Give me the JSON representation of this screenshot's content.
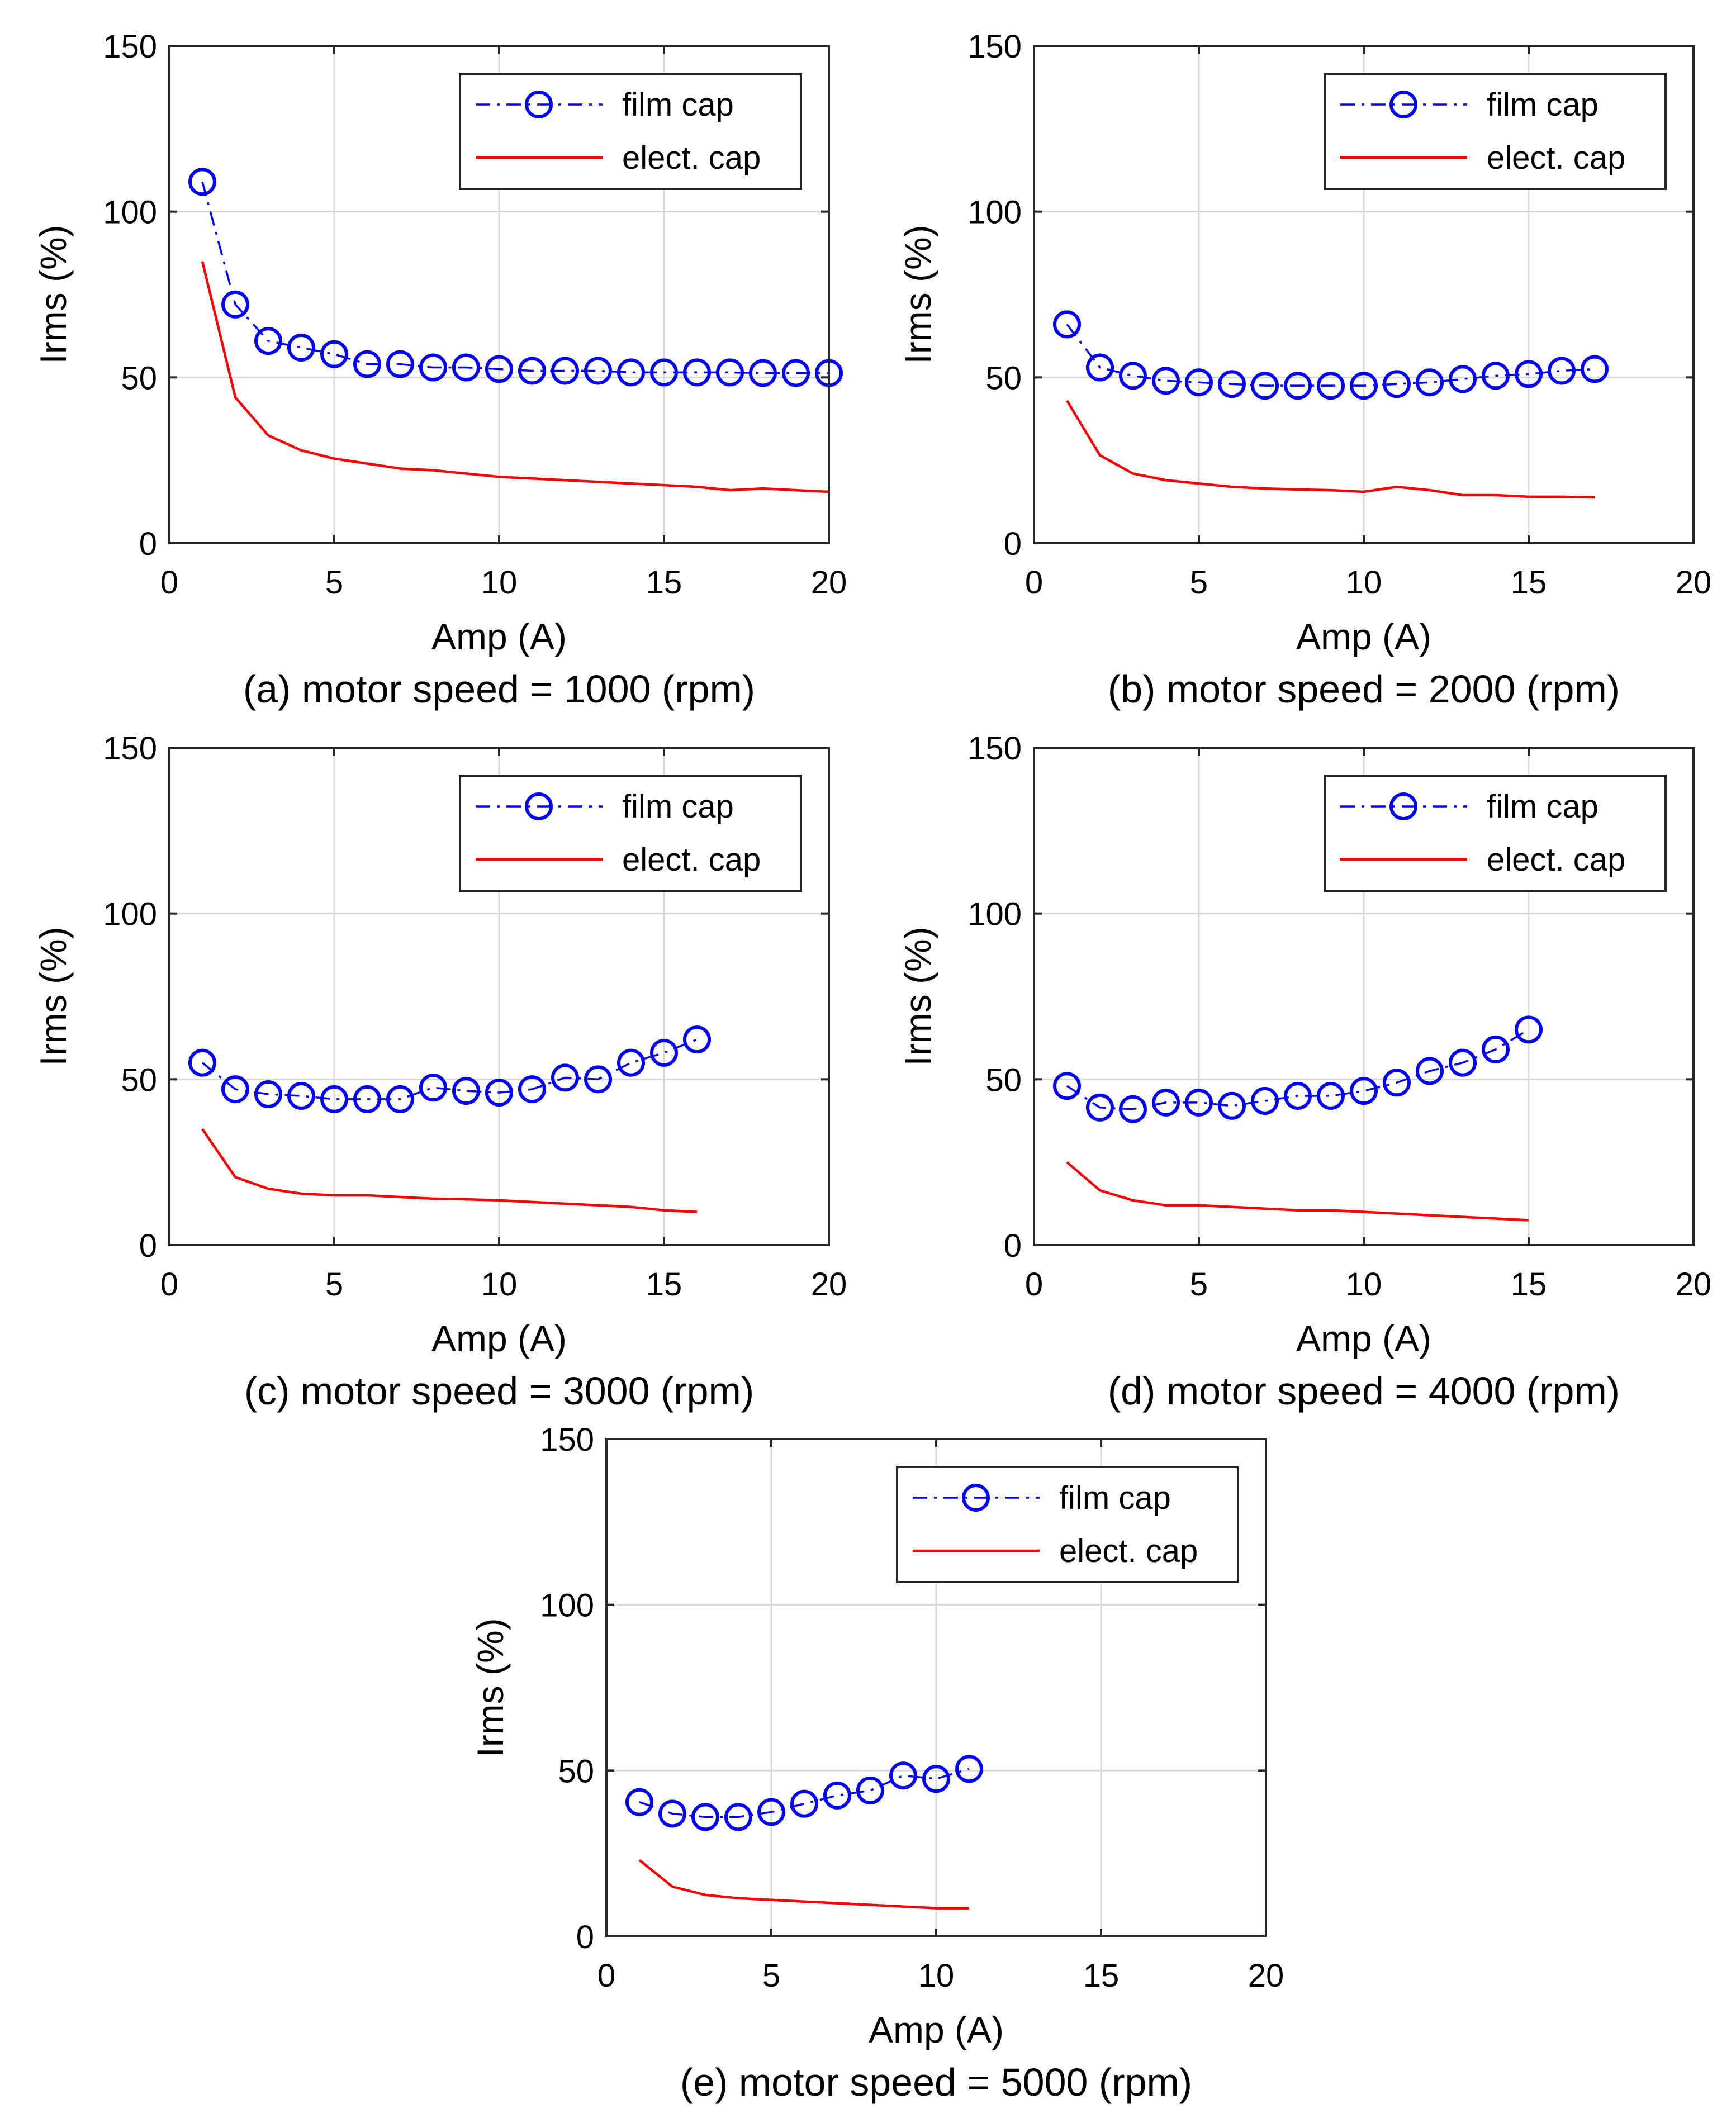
{
  "chart_data": [
    {
      "type": "line",
      "caption": "(a) motor speed = 1000 (rpm)",
      "xlabel": "Amp (A)",
      "ylabel": "Irms (%)",
      "xlim": [
        0,
        20
      ],
      "ylim": [
        0,
        150
      ],
      "xticks": [
        "0",
        "5",
        "10",
        "15",
        "20"
      ],
      "yticks": [
        "0",
        "50",
        "100",
        "150"
      ],
      "grid": true,
      "legend_position": "top-right",
      "series": [
        {
          "name": "film cap",
          "style": "dash-dot-circle",
          "color": "#0000ff",
          "x": [
            1,
            2,
            3,
            4,
            5,
            6,
            7,
            8,
            9,
            10,
            11,
            12,
            13,
            14,
            15,
            16,
            17,
            18,
            19,
            20
          ],
          "y": [
            109,
            72,
            61,
            59,
            57,
            54,
            54,
            53,
            53,
            52.5,
            52,
            52,
            52,
            51.5,
            51.5,
            51.5,
            51.5,
            51.3,
            51.3,
            51.3
          ]
        },
        {
          "name": "elect. cap",
          "style": "solid",
          "color": "#ff0000",
          "x": [
            1,
            2,
            3,
            4,
            5,
            6,
            7,
            8,
            9,
            10,
            11,
            12,
            13,
            14,
            15,
            16,
            17,
            18,
            19,
            20
          ],
          "y": [
            85,
            44,
            32.5,
            28,
            25.5,
            24,
            22.5,
            22,
            21,
            20,
            19.5,
            19,
            18.5,
            18,
            17.5,
            17,
            16,
            16.5,
            16,
            15.5
          ]
        }
      ]
    },
    {
      "type": "line",
      "caption": "(b) motor speed = 2000 (rpm)",
      "xlabel": "Amp (A)",
      "ylabel": "Irms (%)",
      "xlim": [
        0,
        20
      ],
      "ylim": [
        0,
        150
      ],
      "xticks": [
        "0",
        "5",
        "10",
        "15",
        "20"
      ],
      "yticks": [
        "0",
        "50",
        "100",
        "150"
      ],
      "grid": true,
      "legend_position": "top-right",
      "series": [
        {
          "name": "film cap",
          "style": "dash-dot-circle",
          "color": "#0000ff",
          "x": [
            1,
            2,
            3,
            4,
            5,
            6,
            7,
            8,
            9,
            10,
            11,
            12,
            13,
            14,
            15,
            16,
            17
          ],
          "y": [
            66,
            53,
            50.5,
            49,
            48.5,
            48,
            47.5,
            47.5,
            47.5,
            47.5,
            48,
            48.5,
            49.5,
            50.5,
            51,
            52,
            52.5
          ]
        },
        {
          "name": "elect. cap",
          "style": "solid",
          "color": "#ff0000",
          "x": [
            1,
            2,
            3,
            4,
            5,
            6,
            7,
            8,
            9,
            10,
            11,
            12,
            13,
            14,
            15,
            16,
            17
          ],
          "y": [
            43,
            26.5,
            21,
            19,
            18,
            17,
            16.5,
            16.2,
            16,
            15.5,
            17,
            16,
            14.5,
            14.5,
            14,
            14,
            13.8
          ]
        }
      ]
    },
    {
      "type": "line",
      "caption": "(c) motor speed = 3000 (rpm)",
      "xlabel": "Amp (A)",
      "ylabel": "Irms (%)",
      "xlim": [
        0,
        20
      ],
      "ylim": [
        0,
        150
      ],
      "xticks": [
        "0",
        "5",
        "10",
        "15",
        "20"
      ],
      "yticks": [
        "0",
        "50",
        "100",
        "150"
      ],
      "grid": true,
      "legend_position": "top-right",
      "series": [
        {
          "name": "film cap",
          "style": "dash-dot-circle",
          "color": "#0000ff",
          "x": [
            1,
            2,
            3,
            4,
            5,
            6,
            7,
            8,
            9,
            10,
            11,
            12,
            13,
            14,
            15,
            16
          ],
          "y": [
            55,
            47,
            45.5,
            45,
            44,
            44,
            44,
            47.5,
            46.5,
            46,
            47,
            50.5,
            50,
            55,
            58,
            62
          ]
        },
        {
          "name": "elect. cap",
          "style": "solid",
          "color": "#ff0000",
          "x": [
            1,
            2,
            3,
            4,
            5,
            6,
            7,
            8,
            9,
            10,
            11,
            12,
            13,
            14,
            15,
            16
          ],
          "y": [
            35,
            20.5,
            17,
            15.5,
            15,
            15,
            14.5,
            14,
            13.8,
            13.5,
            13,
            12.5,
            12,
            11.5,
            10.5,
            10
          ]
        }
      ]
    },
    {
      "type": "line",
      "caption": "(d) motor speed = 4000 (rpm)",
      "xlabel": "Amp (A)",
      "ylabel": "Irms (%)",
      "xlim": [
        0,
        20
      ],
      "ylim": [
        0,
        150
      ],
      "xticks": [
        "0",
        "5",
        "10",
        "15",
        "20"
      ],
      "yticks": [
        "0",
        "50",
        "100",
        "150"
      ],
      "grid": true,
      "legend_position": "top-right",
      "series": [
        {
          "name": "film cap",
          "style": "dash-dot-circle",
          "color": "#0000ff",
          "x": [
            1,
            2,
            3,
            4,
            5,
            6,
            7,
            8,
            9,
            10,
            11,
            12,
            13,
            14,
            15
          ],
          "y": [
            48,
            41.5,
            41,
            43,
            43,
            42,
            43.5,
            45,
            45,
            46.5,
            49,
            52.5,
            55,
            59,
            65
          ]
        },
        {
          "name": "elect. cap",
          "style": "solid",
          "color": "#ff0000",
          "x": [
            1,
            2,
            3,
            4,
            5,
            6,
            7,
            8,
            9,
            10,
            11,
            12,
            13,
            14,
            15
          ],
          "y": [
            25,
            16.5,
            13.5,
            12,
            12,
            11.5,
            11,
            10.5,
            10.5,
            10,
            9.5,
            9,
            8.5,
            8,
            7.5
          ]
        }
      ]
    },
    {
      "type": "line",
      "caption": "(e) motor speed = 5000 (rpm)",
      "xlabel": "Amp (A)",
      "ylabel": "Irms (%)",
      "xlim": [
        0,
        20
      ],
      "ylim": [
        0,
        150
      ],
      "xticks": [
        "0",
        "5",
        "10",
        "15",
        "20"
      ],
      "yticks": [
        "0",
        "50",
        "100",
        "150"
      ],
      "grid": true,
      "legend_position": "top-right",
      "series": [
        {
          "name": "film cap",
          "style": "dash-dot-circle",
          "color": "#0000ff",
          "x": [
            1,
            2,
            3,
            4,
            5,
            6,
            7,
            8,
            9,
            10,
            11
          ],
          "y": [
            40.5,
            37,
            36,
            36,
            37.5,
            40,
            42.5,
            44,
            48.5,
            47.5,
            50.5
          ]
        },
        {
          "name": "elect. cap",
          "style": "solid",
          "color": "#ff0000",
          "x": [
            1,
            2,
            3,
            4,
            5,
            6,
            7,
            8,
            9,
            10,
            11
          ],
          "y": [
            23,
            15,
            12.5,
            11.5,
            11,
            10.5,
            10,
            9.5,
            9,
            8.5,
            8.5
          ]
        }
      ]
    }
  ]
}
